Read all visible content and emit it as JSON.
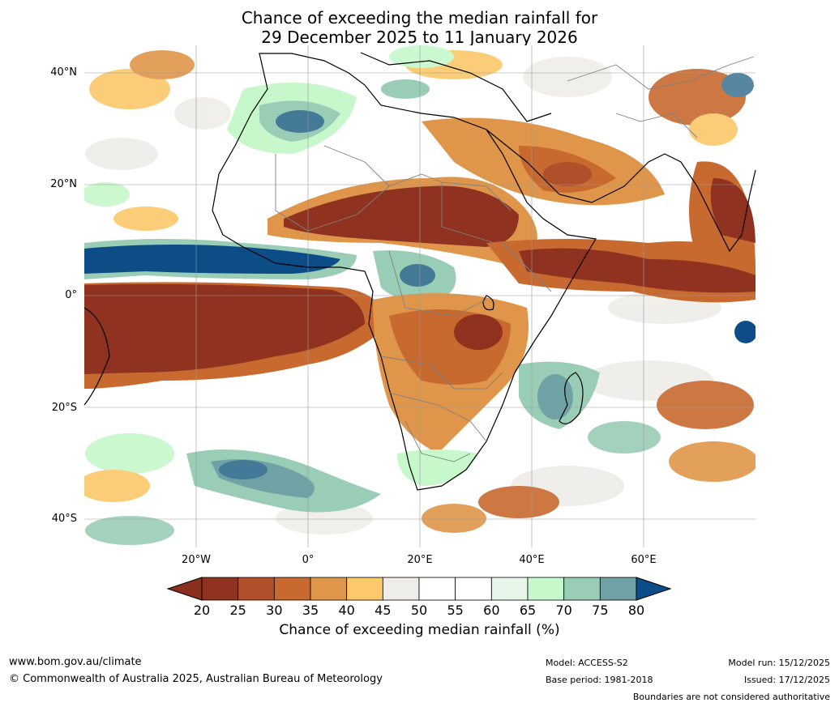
{
  "title": {
    "line1": "Chance of exceeding the median rainfall for",
    "line2": "29 December 2025 to 11 January 2026"
  },
  "map": {
    "lat_labels": [
      "40°N",
      "20°N",
      "0°",
      "20°S",
      "40°S"
    ],
    "lat_values": [
      40,
      20,
      0,
      -20,
      -40
    ],
    "lon_labels": [
      "20°W",
      "0°",
      "20°E",
      "40°E",
      "60°E"
    ],
    "lon_values": [
      -20,
      0,
      20,
      40,
      60
    ],
    "extent": {
      "lon_min": -40,
      "lon_max": 80,
      "lat_min": -45,
      "lat_max": 45
    }
  },
  "colorbar": {
    "ticks": [
      "20",
      "25",
      "30",
      "35",
      "40",
      "45",
      "50",
      "55",
      "60",
      "65",
      "70",
      "75",
      "80"
    ],
    "colors": [
      "#8f3320",
      "#b0502a",
      "#c8692f",
      "#e0964a",
      "#fbc86a",
      "#eeede8",
      "#ffffff",
      "#ffffff",
      "#e8f6e9",
      "#c7f8cb",
      "#9acdb5",
      "#6ea2a5",
      "#447a97"
    ],
    "under_color": "#8a2f1d",
    "over_color": "#0c4d87",
    "label": "Chance of exceeding median rainfall (%)"
  },
  "footer": {
    "website": "www.bom.gov.au/climate",
    "copyright": "© Commonwealth of Australia 2025, Australian Bureau of Meteorology",
    "model": "Model: ACCESS-S2",
    "base_period": "Base period: 1981-2018",
    "model_run": "Model run: 15/12/2025",
    "issued": "Issued: 17/12/2025",
    "disclaimer": "Boundaries are not considered authoritative"
  }
}
